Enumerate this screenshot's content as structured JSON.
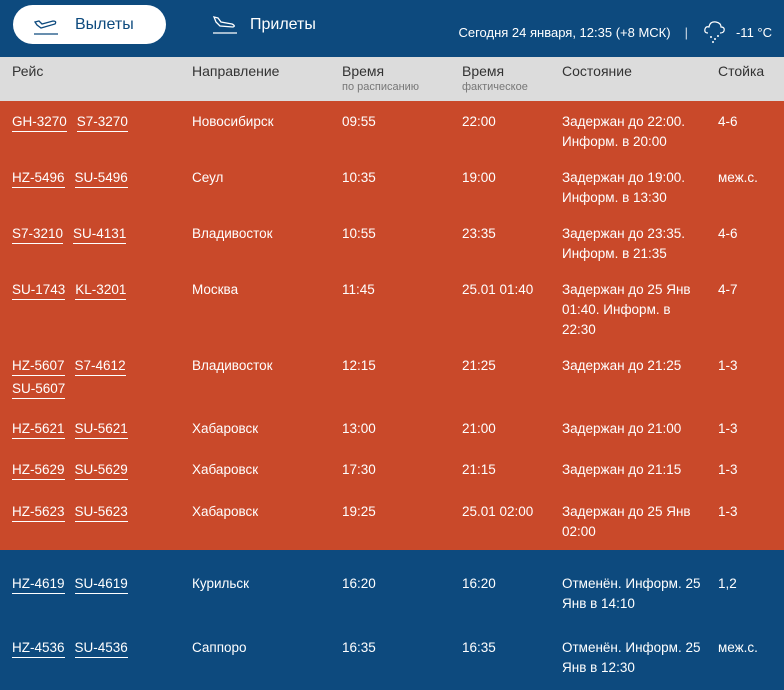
{
  "header": {
    "departures": "Вылеты",
    "arrivals": "Прилеты",
    "datetime": "Сегодня 24 января, 12:35 (+8 МСК)",
    "separator": "|",
    "temperature": "-11 °C",
    "weather_icon": "snow-cloud-icon"
  },
  "columns": {
    "flight": "Рейс",
    "destination": "Направление",
    "time_sched": "Время",
    "time_sched_sub": "по расписанию",
    "time_actual": "Время",
    "time_actual_sub": "фактическое",
    "status": "Состояние",
    "counter": "Стойка"
  },
  "colors": {
    "blue": "#0d4a7e",
    "orange": "#c9492a",
    "header_gray": "#dcdcdc"
  },
  "flights": [
    {
      "codes": [
        "GH-3270",
        "S7-3270"
      ],
      "dest": "Новосибирск",
      "sched": "09:55",
      "actual": "22:00",
      "status": "Задержан до 22:00. Информ. в 20:00",
      "counter": "4-6",
      "kind": "delayed"
    },
    {
      "codes": [
        "HZ-5496",
        "SU-5496"
      ],
      "dest": "Сеул",
      "sched": "10:35",
      "actual": "19:00",
      "status": "Задержан до 19:00. Информ. в 13:30",
      "counter": "меж.с.",
      "kind": "delayed"
    },
    {
      "codes": [
        "S7-3210",
        "SU-4131"
      ],
      "dest": "Владивосток",
      "sched": "10:55",
      "actual": "23:35",
      "status": "Задержан до 23:35. Информ. в 21:35",
      "counter": "4-6",
      "kind": "delayed"
    },
    {
      "codes": [
        "SU-1743",
        "KL-3201"
      ],
      "dest": "Москва",
      "sched": "11:45",
      "actual": "25.01 01:40",
      "status": "Задержан до 25 Янв 01:40. Информ. в 22:30",
      "counter": "4-7",
      "kind": "delayed"
    },
    {
      "codes": [
        "HZ-5607",
        "S7-4612",
        "SU-5607"
      ],
      "dest": "Владивосток",
      "sched": "12:15",
      "actual": "21:25",
      "status": "Задержан до 21:25",
      "counter": "1-3",
      "kind": "delayed"
    },
    {
      "codes": [
        "HZ-5621",
        "SU-5621"
      ],
      "dest": "Хабаровск",
      "sched": "13:00",
      "actual": "21:00",
      "status": "Задержан до 21:00",
      "counter": "1-3",
      "kind": "delayed"
    },
    {
      "codes": [
        "HZ-5629",
        "SU-5629"
      ],
      "dest": "Хабаровск",
      "sched": "17:30",
      "actual": "21:15",
      "status": "Задержан до 21:15",
      "counter": "1-3",
      "kind": "delayed"
    },
    {
      "codes": [
        "HZ-5623",
        "SU-5623"
      ],
      "dest": "Хабаровск",
      "sched": "19:25",
      "actual": "25.01 02:00",
      "status": "Задержан до 25 Янв 02:00",
      "counter": "1-3",
      "kind": "delayed"
    },
    {
      "codes": [
        "HZ-4619",
        "SU-4619"
      ],
      "dest": "Курильск",
      "sched": "16:20",
      "actual": "16:20",
      "status": "Отменён. Информ. 25 Янв в 14:10",
      "counter": "1,2",
      "kind": "cancelled"
    },
    {
      "codes": [
        "HZ-4536",
        "SU-4536"
      ],
      "dest": "Саппоро",
      "sched": "16:35",
      "actual": "16:35",
      "status": "Отменён. Информ. 25 Янв в 12:30",
      "counter": "меж.с.",
      "kind": "cancelled"
    }
  ]
}
